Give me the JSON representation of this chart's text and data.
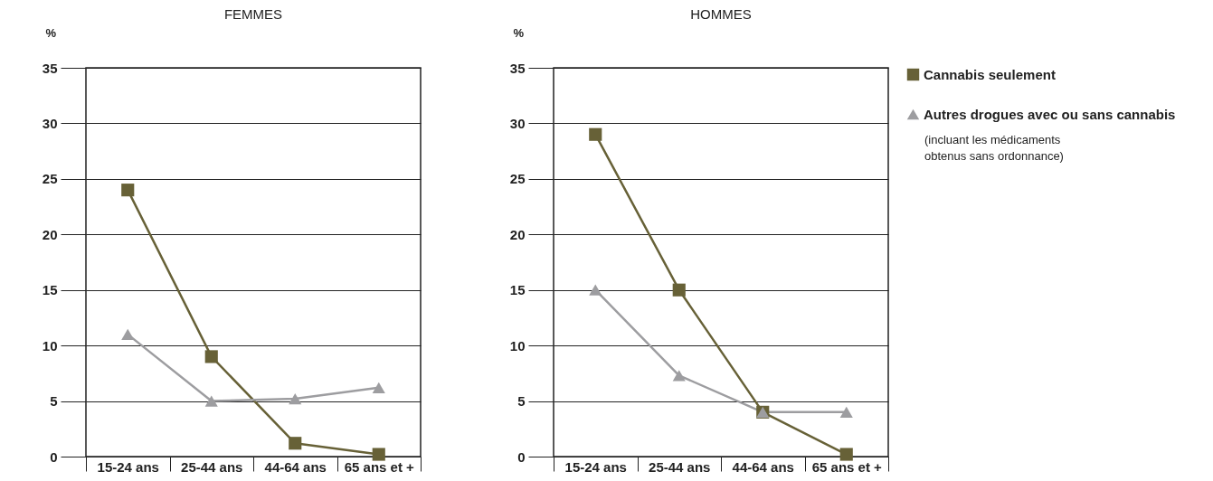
{
  "chart_data": [
    {
      "type": "line",
      "title": "FEMMES",
      "ylabel": "%",
      "categories": [
        "15-24 ans",
        "25-44 ans",
        "44-64 ans",
        "65 ans et +"
      ],
      "ylim": [
        0,
        35
      ],
      "yticks": [
        0,
        5,
        10,
        15,
        20,
        25,
        30,
        35
      ],
      "grid": "y",
      "series": [
        {
          "color": "#676137",
          "marker": "square",
          "values": [
            24,
            9,
            1.2,
            0.2
          ]
        },
        {
          "color": "#9d9da0",
          "marker": "triangle",
          "values": [
            11,
            5,
            5.2,
            6.2
          ]
        }
      ]
    },
    {
      "type": "line",
      "title": "HOMMES",
      "ylabel": "%",
      "categories": [
        "15-24 ans",
        "25-44 ans",
        "44-64 ans",
        "65 ans et +"
      ],
      "ylim": [
        0,
        35
      ],
      "yticks": [
        0,
        5,
        10,
        15,
        20,
        25,
        30,
        35
      ],
      "grid": "y",
      "legend": "right",
      "annotations": [
        "(incluant les médicaments obtenus sans ordonnance)"
      ],
      "series": [
        {
          "name": "Cannabis seulement",
          "color": "#676137",
          "marker": "square",
          "values": [
            29,
            15,
            4,
            0.2
          ]
        },
        {
          "name": "Autres drogues avec ou sans cannabis",
          "color": "#9d9da0",
          "marker": "triangle",
          "values": [
            15,
            7.3,
            4,
            4
          ]
        }
      ]
    }
  ]
}
